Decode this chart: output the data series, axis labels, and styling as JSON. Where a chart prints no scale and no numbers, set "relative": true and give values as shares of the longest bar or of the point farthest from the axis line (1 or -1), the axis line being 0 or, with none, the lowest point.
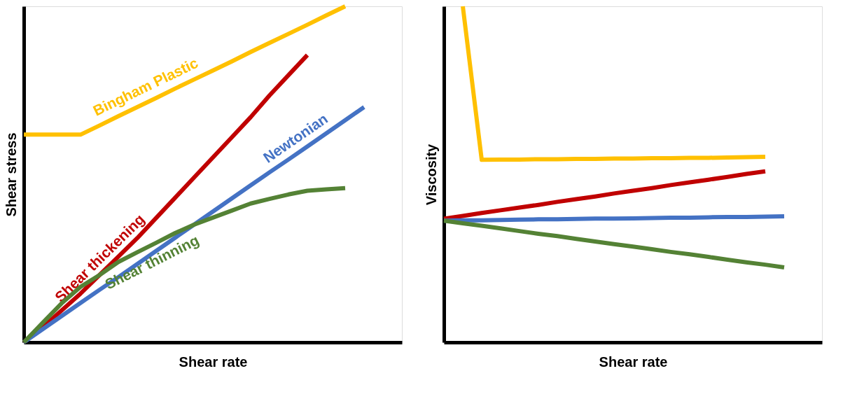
{
  "chart_data": [
    {
      "type": "line",
      "relative": true,
      "xlabel": "Shear rate",
      "ylabel": "Shear stress",
      "tick_labels": false,
      "grid": false,
      "categories": [
        null,
        null,
        null,
        null,
        null,
        null,
        null,
        null,
        null,
        null,
        null,
        null,
        null,
        null,
        null,
        null,
        null,
        null,
        null,
        null,
        null
      ],
      "series": [
        {
          "name": "Bingham Plastic",
          "color": "#ffc000",
          "values": [
            0.618,
            0.618,
            0.618,
            0.618,
            0.645,
            0.673,
            0.7,
            0.727,
            0.755,
            0.782,
            0.809,
            0.836,
            0.864,
            0.891,
            0.918,
            0.945,
            0.973,
            1.0,
            null,
            null,
            null
          ]
        },
        {
          "name": "Shear thickening",
          "color": "#c00000",
          "values": [
            0,
            0.045,
            0.095,
            0.145,
            0.2,
            0.255,
            0.31,
            0.37,
            0.43,
            0.49,
            0.55,
            0.61,
            0.67,
            0.735,
            0.795,
            0.855,
            null,
            null,
            null,
            null,
            null
          ]
        },
        {
          "name": "Newtonian",
          "color": "#4472c4",
          "values": [
            0,
            0.039,
            0.078,
            0.117,
            0.156,
            0.194,
            0.233,
            0.272,
            0.311,
            0.35,
            0.389,
            0.428,
            0.467,
            0.506,
            0.544,
            0.583,
            0.622,
            0.661,
            0.7,
            null,
            null
          ]
        },
        {
          "name": "Shear thinning",
          "color": "#548235",
          "values": [
            0,
            0.058,
            0.116,
            0.165,
            0.2,
            0.239,
            0.268,
            0.296,
            0.325,
            0.35,
            0.371,
            0.392,
            0.413,
            0.427,
            0.44,
            0.451,
            0.455,
            0.459,
            null,
            null,
            null
          ]
        }
      ]
    },
    {
      "type": "line",
      "relative": true,
      "xlabel": "Shear rate",
      "ylabel": "Viscosity",
      "tick_labels": false,
      "grid": false,
      "categories": [
        null,
        null,
        null,
        null,
        null,
        null,
        null,
        null,
        null,
        null,
        null,
        null,
        null,
        null,
        null,
        null,
        null,
        null,
        null,
        null,
        null
      ],
      "series": [
        {
          "color": "#ffc000",
          "values": [
            null,
            1,
            0.543,
            0.544,
            0.544,
            0.545,
            0.545,
            0.546,
            0.546,
            0.547,
            0.547,
            0.548,
            0.548,
            0.549,
            0.549,
            0.55,
            0.551,
            0.552,
            null,
            null,
            null
          ]
        },
        {
          "color": "#c00000",
          "values": [
            0.368,
            0.376,
            0.385,
            0.393,
            0.401,
            0.409,
            0.418,
            0.426,
            0.434,
            0.443,
            0.451,
            0.459,
            0.468,
            0.476,
            0.484,
            0.492,
            0.501,
            0.509,
            null,
            null,
            null
          ]
        },
        {
          "color": "#4472c4",
          "values": [
            0.362,
            0.363,
            0.363,
            0.364,
            0.365,
            0.366,
            0.366,
            0.367,
            0.368,
            0.368,
            0.369,
            0.37,
            0.371,
            0.371,
            0.372,
            0.373,
            0.373,
            0.374,
            0.375,
            null,
            null
          ]
        },
        {
          "color": "#548235",
          "values": [
            0.362,
            0.354,
            0.347,
            0.339,
            0.331,
            0.323,
            0.316,
            0.308,
            0.3,
            0.292,
            0.285,
            0.277,
            0.269,
            0.262,
            0.254,
            0.246,
            0.238,
            0.231,
            0.223,
            null,
            null
          ]
        }
      ]
    }
  ]
}
